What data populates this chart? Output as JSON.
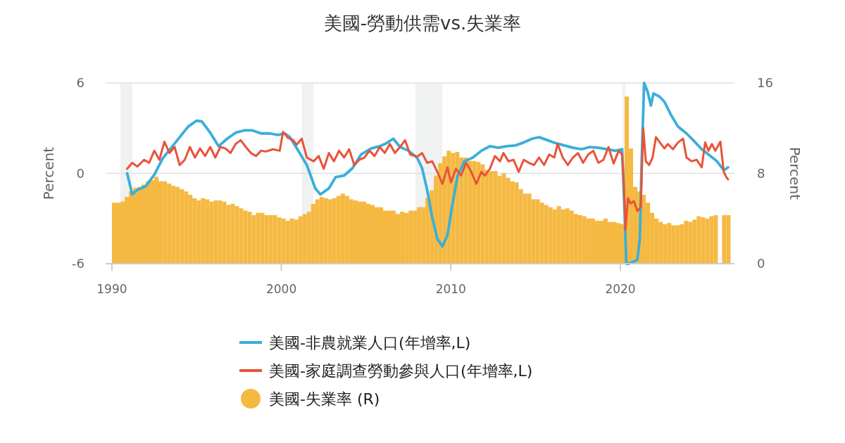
{
  "chart_data": {
    "type": "line",
    "title": "美國-勞動供需vs.失業率",
    "ylabel": "Percent",
    "y2label": "Percent",
    "xlim": [
      1989.63,
      2026.73
    ],
    "xticks": [
      1990,
      2000,
      2010,
      2020
    ],
    "ylim": [
      -6,
      6
    ],
    "yticks": [
      -6,
      0,
      6
    ],
    "y2lim": [
      0,
      16
    ],
    "y2ticks": [
      0,
      8,
      16
    ],
    "grid": "y",
    "legend": "bottom",
    "bands": [
      {
        "axis": "x",
        "from": 1990.5,
        "to": 1991.2,
        "color": "#f0f2f2"
      },
      {
        "axis": "x",
        "from": 2001.2,
        "to": 2001.9,
        "color": "#f0f2f2"
      },
      {
        "axis": "x",
        "from": 2007.9,
        "to": 2009.5,
        "color": "#f0f2f2"
      },
      {
        "axis": "x",
        "from": 2020.1,
        "to": 2020.3,
        "color": "#f0f2f2"
      }
    ],
    "series": [
      {
        "name": "美國-失業率 (R)",
        "type": "bar",
        "axis": "y2",
        "color": "#f5b942",
        "x": [
          1990,
          1990.25,
          1990.5,
          1990.75,
          1991,
          1991.25,
          1991.5,
          1991.75,
          1992,
          1992.25,
          1992.5,
          1992.75,
          1993,
          1993.25,
          1993.5,
          1993.75,
          1994,
          1994.25,
          1994.5,
          1994.75,
          1995,
          1995.25,
          1995.5,
          1995.75,
          1996,
          1996.25,
          1996.5,
          1996.75,
          1997,
          1997.25,
          1997.5,
          1997.75,
          1998,
          1998.25,
          1998.5,
          1998.75,
          1999,
          1999.25,
          1999.5,
          1999.75,
          2000,
          2000.25,
          2000.5,
          2000.75,
          2001,
          2001.25,
          2001.5,
          2001.75,
          2002,
          2002.25,
          2002.5,
          2002.75,
          2003,
          2003.25,
          2003.5,
          2003.75,
          2004,
          2004.25,
          2004.5,
          2004.75,
          2005,
          2005.25,
          2005.5,
          2005.75,
          2006,
          2006.25,
          2006.5,
          2006.75,
          2007,
          2007.25,
          2007.5,
          2007.75,
          2008,
          2008.25,
          2008.5,
          2008.75,
          2009,
          2009.25,
          2009.5,
          2009.75,
          2010,
          2010.25,
          2010.5,
          2010.75,
          2011,
          2011.25,
          2011.5,
          2011.75,
          2012,
          2012.25,
          2012.5,
          2012.75,
          2013,
          2013.25,
          2013.5,
          2013.75,
          2014,
          2014.25,
          2014.5,
          2014.75,
          2015,
          2015.25,
          2015.5,
          2015.75,
          2016,
          2016.25,
          2016.5,
          2016.75,
          2017,
          2017.25,
          2017.5,
          2017.75,
          2018,
          2018.25,
          2018.5,
          2018.75,
          2019,
          2019.25,
          2019.5,
          2019.75,
          2020,
          2020.25,
          2020.5,
          2020.75,
          2021,
          2021.25,
          2021.5,
          2021.75,
          2022,
          2022.25,
          2022.5,
          2022.75,
          2023,
          2023.25,
          2023.5,
          2023.75,
          2024,
          2024.25,
          2024.5,
          2024.75,
          2025,
          2025.25,
          2025.5,
          2026,
          2026.25
        ],
        "values": [
          5.4,
          5.4,
          5.5,
          5.9,
          6.4,
          6.7,
          6.8,
          7.0,
          7.3,
          7.4,
          7.7,
          7.3,
          7.3,
          7.1,
          6.9,
          6.8,
          6.6,
          6.4,
          6.1,
          5.8,
          5.6,
          5.8,
          5.7,
          5.5,
          5.6,
          5.6,
          5.5,
          5.2,
          5.3,
          5.1,
          4.9,
          4.7,
          4.6,
          4.3,
          4.5,
          4.5,
          4.3,
          4.3,
          4.3,
          4.1,
          4.0,
          3.8,
          4.0,
          3.9,
          4.2,
          4.4,
          4.6,
          5.3,
          5.7,
          5.9,
          5.8,
          5.7,
          5.8,
          6.0,
          6.2,
          6.0,
          5.7,
          5.6,
          5.5,
          5.5,
          5.3,
          5.2,
          5.0,
          5.0,
          4.7,
          4.7,
          4.7,
          4.4,
          4.6,
          4.5,
          4.7,
          4.7,
          5.0,
          5.0,
          5.8,
          6.5,
          7.8,
          8.9,
          9.5,
          10.0,
          9.8,
          9.9,
          9.4,
          9.4,
          9.1,
          9.1,
          9.0,
          8.8,
          8.3,
          8.2,
          8.2,
          7.8,
          8.0,
          7.6,
          7.3,
          7.2,
          6.6,
          6.2,
          6.2,
          5.7,
          5.7,
          5.4,
          5.2,
          5.0,
          4.8,
          5.1,
          4.8,
          4.9,
          4.7,
          4.4,
          4.3,
          4.2,
          4.0,
          4.0,
          3.8,
          3.8,
          4.0,
          3.7,
          3.7,
          3.6,
          3.5,
          14.8,
          10.2,
          6.8,
          6.4,
          6.1,
          5.4,
          4.5,
          4.0,
          3.7,
          3.5,
          3.6,
          3.4,
          3.4,
          3.5,
          3.8,
          3.7,
          3.9,
          4.2,
          4.1,
          4.0,
          4.2,
          4.3,
          4.3,
          4.3
        ]
      },
      {
        "name": "美國-非農就業人口(年增率,L)",
        "axis": "y",
        "color": "#3aafd9",
        "x": [
          1990.9,
          1991.2,
          1991.5,
          1992,
          1992.5,
          1993,
          1993.5,
          1994,
          1994.5,
          1995,
          1995.3,
          1995.8,
          1996.3,
          1996.8,
          1997.3,
          1997.8,
          1998.3,
          1998.8,
          1999.3,
          1999.8,
          2000.2,
          2000.5,
          2001,
          2001.5,
          2002,
          2002.3,
          2002.8,
          2003.2,
          2003.7,
          2004.2,
          2004.7,
          2005.3,
          2005.8,
          2006.2,
          2006.6,
          2007,
          2007.5,
          2008,
          2008.3,
          2008.6,
          2008.9,
          2009.2,
          2009.5,
          2009.8,
          2010.1,
          2010.4,
          2010.8,
          2011.3,
          2011.8,
          2012.3,
          2012.8,
          2013.3,
          2013.8,
          2014.3,
          2014.8,
          2015.2,
          2015.7,
          2016.2,
          2016.7,
          2017.2,
          2017.7,
          2018.2,
          2018.7,
          2019.2,
          2019.7,
          2020.1,
          2020.25,
          2020.35,
          2020.5,
          2020.8,
          2021,
          2021.15,
          2021.25,
          2021.4,
          2021.6,
          2021.8,
          2021.95,
          2022.3,
          2022.6,
          2023,
          2023.4,
          2023.9,
          2024.3,
          2024.8,
          2025.2,
          2025.7,
          2026.1,
          2026.35
        ],
        "values": [
          0,
          -1.4,
          -1.1,
          -0.85,
          -0.1,
          1.0,
          1.7,
          2.4,
          3.1,
          3.5,
          3.45,
          2.7,
          1.8,
          2.3,
          2.7,
          2.85,
          2.85,
          2.65,
          2.65,
          2.55,
          2.65,
          2.4,
          1.5,
          0.55,
          -1.0,
          -1.4,
          -1.0,
          -0.25,
          -0.15,
          0.35,
          1.25,
          1.65,
          1.8,
          2.0,
          2.3,
          1.75,
          1.5,
          1.05,
          0.35,
          -1.1,
          -2.95,
          -4.35,
          -4.85,
          -4.1,
          -2.0,
          -0.15,
          0.8,
          1.05,
          1.5,
          1.8,
          1.7,
          1.8,
          1.85,
          2.05,
          2.3,
          2.4,
          2.2,
          2.0,
          1.85,
          1.7,
          1.6,
          1.75,
          1.7,
          1.6,
          1.5,
          1.6,
          -2.5,
          -6,
          -6,
          -5.85,
          -5.75,
          -4.3,
          0.5,
          6,
          5.45,
          4.5,
          5.3,
          5.1,
          4.75,
          3.85,
          3.1,
          2.65,
          2.2,
          1.6,
          1.25,
          0.8,
          0.2,
          0.4
        ]
      },
      {
        "name": "美國-家庭調查勞動參與人口(年增率,L)",
        "axis": "y",
        "color": "#e8533a",
        "x": [
          1990.9,
          1991.2,
          1991.5,
          1991.9,
          1992.2,
          1992.5,
          1992.8,
          1993.1,
          1993.4,
          1993.7,
          1994,
          1994.3,
          1994.6,
          1994.9,
          1995.2,
          1995.5,
          1995.8,
          1996.1,
          1996.4,
          1996.7,
          1997,
          1997.3,
          1997.6,
          1997.9,
          1998.2,
          1998.5,
          1998.8,
          1999.1,
          1999.5,
          1999.9,
          2000.1,
          2000.4,
          2000.7,
          2000.9,
          2001.2,
          2001.5,
          2001.9,
          2002.2,
          2002.5,
          2002.8,
          2003.1,
          2003.4,
          2003.7,
          2004,
          2004.3,
          2004.6,
          2004.9,
          2005.2,
          2005.5,
          2005.8,
          2006.1,
          2006.4,
          2006.7,
          2007,
          2007.3,
          2007.6,
          2008,
          2008.3,
          2008.6,
          2008.9,
          2009.2,
          2009.5,
          2009.8,
          2010,
          2010.3,
          2010.6,
          2010.9,
          2011.2,
          2011.5,
          2011.8,
          2012,
          2012.3,
          2012.6,
          2012.9,
          2013.1,
          2013.4,
          2013.7,
          2014,
          2014.3,
          2014.6,
          2014.9,
          2015.2,
          2015.5,
          2015.8,
          2016.1,
          2016.3,
          2016.6,
          2016.9,
          2017.2,
          2017.5,
          2017.8,
          2018.1,
          2018.4,
          2018.7,
          2019,
          2019.3,
          2019.6,
          2019.9,
          2020.1,
          2020.2,
          2020.3,
          2020.45,
          2020.6,
          2020.8,
          2021,
          2021.2,
          2021.35,
          2021.5,
          2021.7,
          2021.9,
          2022.1,
          2022.3,
          2022.6,
          2022.8,
          2023.1,
          2023.4,
          2023.7,
          2023.9,
          2024.2,
          2024.5,
          2024.8,
          2025,
          2025.2,
          2025.4,
          2025.6,
          2025.9,
          2026.1,
          2026.25,
          2026.35
        ],
        "values": [
          0.3,
          0.7,
          0.45,
          0.9,
          0.7,
          1.5,
          0.9,
          2.1,
          1.35,
          1.75,
          0.55,
          0.9,
          1.75,
          1.05,
          1.65,
          1.15,
          1.75,
          1.05,
          1.75,
          1.65,
          1.35,
          1.95,
          2.2,
          1.75,
          1.35,
          1.15,
          1.5,
          1.45,
          1.6,
          1.5,
          2.75,
          2.35,
          2.2,
          1.9,
          2.3,
          1.05,
          0.8,
          1.15,
          0.3,
          1.35,
          0.8,
          1.5,
          1.05,
          1.6,
          0.55,
          0.9,
          1.05,
          1.5,
          1.15,
          1.75,
          1.35,
          1.95,
          1.35,
          1.75,
          2.2,
          1.25,
          1.1,
          1.35,
          0.7,
          0.8,
          0.1,
          -0.7,
          0.4,
          -0.6,
          0.3,
          -0.15,
          0.7,
          0.1,
          -0.7,
          0.1,
          -0.15,
          0.3,
          1.15,
          0.8,
          1.35,
          0.8,
          0.9,
          0.1,
          0.9,
          0.7,
          0.55,
          1.05,
          0.55,
          1.25,
          1.05,
          1.95,
          1.05,
          0.55,
          1.05,
          1.35,
          0.7,
          1.25,
          1.5,
          0.7,
          0.9,
          1.75,
          0.65,
          1.5,
          1.25,
          -0.6,
          -3.75,
          -1.65,
          -2.0,
          -1.85,
          -2.5,
          -2.25,
          3.0,
          0.8,
          0.55,
          1.05,
          2.4,
          2.1,
          1.65,
          1.95,
          1.6,
          2.05,
          2.3,
          1.05,
          0.8,
          0.9,
          0.4,
          2.05,
          1.5,
          1.95,
          1.5,
          2.1,
          0.1,
          -0.25,
          -0.4
        ]
      }
    ]
  }
}
